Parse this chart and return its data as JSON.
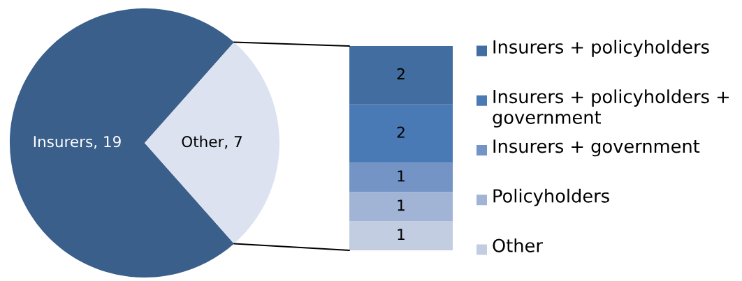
{
  "chart_data": [
    {
      "type": "pie",
      "categories": [
        "Insurers, 19",
        "Other, 7"
      ],
      "values": [
        19,
        7
      ],
      "colors": [
        "#3a5f8b",
        "#dce2ef"
      ]
    },
    {
      "type": "bar",
      "stacked": true,
      "categories": [
        null
      ],
      "tick_labels": false,
      "data_labels": true,
      "legend": "right",
      "series": [
        {
          "name": "Other",
          "color": "#c2cde2",
          "values": [
            1
          ]
        },
        {
          "name": "Policyholders",
          "color": "#a1b4d6",
          "values": [
            1
          ]
        },
        {
          "name": "Insurers + government",
          "color": "#7394c5",
          "values": [
            1
          ]
        },
        {
          "name": "Insurers + policyholders + government",
          "color": "#4a7ab5",
          "values": [
            2
          ]
        },
        {
          "name": "Insurers + policyholders",
          "color": "#426da0",
          "values": [
            2
          ]
        }
      ]
    }
  ]
}
